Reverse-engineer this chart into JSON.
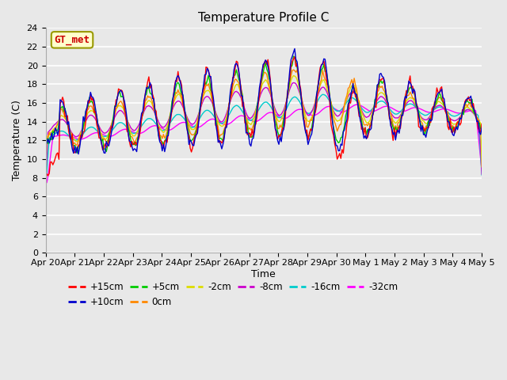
{
  "title": "Temperature Profile C",
  "xlabel": "Time",
  "ylabel": "Temperature (C)",
  "ylim": [
    0,
    24
  ],
  "yticks": [
    0,
    2,
    4,
    6,
    8,
    10,
    12,
    14,
    16,
    18,
    20,
    22,
    24
  ],
  "xtick_labels": [
    "Apr 20",
    "Apr 21",
    "Apr 22",
    "Apr 23",
    "Apr 24",
    "Apr 25",
    "Apr 26",
    "Apr 27",
    "Apr 28",
    "Apr 29",
    "Apr 30",
    "May 1",
    "May 2",
    "May 3",
    "May 4",
    "May 5"
  ],
  "legend_label": "GT_met",
  "series": {
    "+15cm": "#ff0000",
    "+10cm": "#0000cc",
    "+5cm": "#00cc00",
    "0cm": "#ff8800",
    "-2cm": "#dddd00",
    "-8cm": "#cc00cc",
    "-16cm": "#00cccc",
    "-32cm": "#ff00ff"
  },
  "plot_bg_color": "#e8e8e8",
  "grid_color": "#ffffff",
  "title_fontsize": 11,
  "axis_fontsize": 9,
  "tick_fontsize": 8,
  "legend_fontsize": 8.5
}
